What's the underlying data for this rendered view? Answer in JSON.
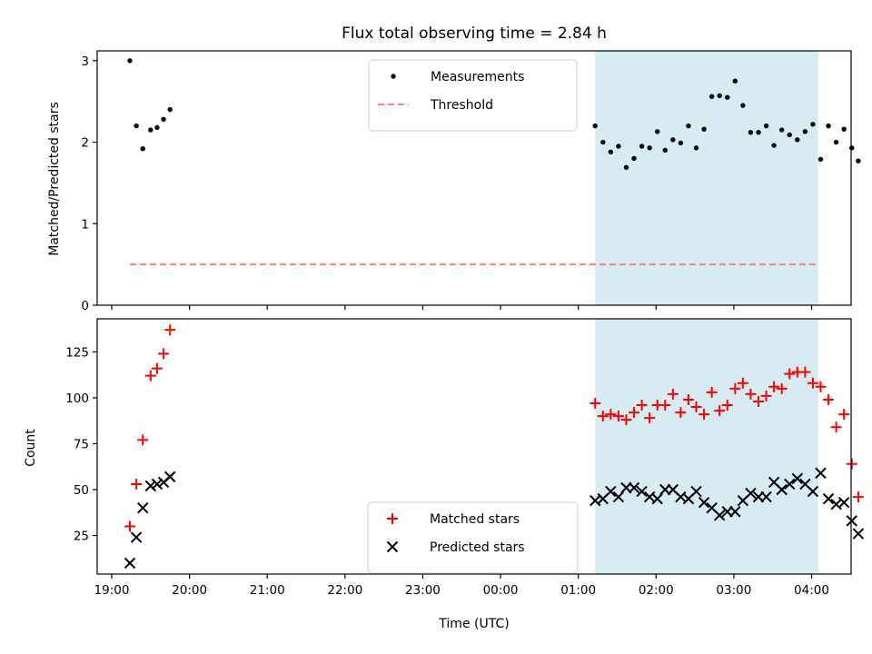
{
  "chart_data": {
    "type": "scatter",
    "title": "Flux total observing time = 2.84 h",
    "xlabel": "Time (UTC)",
    "x_ticks": [
      "19:00",
      "20:00",
      "21:00",
      "22:00",
      "23:00",
      "00:00",
      "01:00",
      "02:00",
      "03:00",
      "04:00"
    ],
    "shaded_region": [
      "01:13",
      "04:05"
    ],
    "panels": [
      {
        "ylabel": "Matched/Predicted stars",
        "ylim": [
          0,
          3.12
        ],
        "yticks": [
          0,
          1,
          2,
          3
        ],
        "legend": "top-center",
        "series": [
          {
            "name": "Measurements",
            "color": "#000000",
            "marker": "dot",
            "points": [
              [
                "19:14",
                3.0
              ],
              [
                "19:19",
                2.2
              ],
              [
                "19:24",
                1.92
              ],
              [
                "19:30",
                2.15
              ],
              [
                "19:35",
                2.18
              ],
              [
                "19:40",
                2.28
              ],
              [
                "19:45",
                2.4
              ],
              [
                "01:13",
                2.2
              ],
              [
                "01:19",
                2.0
              ],
              [
                "01:25",
                1.88
              ],
              [
                "01:31",
                1.95
              ],
              [
                "01:37",
                1.69
              ],
              [
                "01:43",
                1.8
              ],
              [
                "01:49",
                1.95
              ],
              [
                "01:55",
                1.93
              ],
              [
                "02:01",
                2.13
              ],
              [
                "02:07",
                1.9
              ],
              [
                "02:13",
                2.03
              ],
              [
                "02:19",
                1.99
              ],
              [
                "02:25",
                2.2
              ],
              [
                "02:31",
                1.93
              ],
              [
                "02:37",
                2.16
              ],
              [
                "02:43",
                2.56
              ],
              [
                "02:49",
                2.57
              ],
              [
                "02:55",
                2.55
              ],
              [
                "03:01",
                2.75
              ],
              [
                "03:07",
                2.45
              ],
              [
                "03:13",
                2.12
              ],
              [
                "03:19",
                2.12
              ],
              [
                "03:25",
                2.2
              ],
              [
                "03:31",
                1.96
              ],
              [
                "03:37",
                2.15
              ],
              [
                "03:43",
                2.09
              ],
              [
                "03:49",
                2.03
              ],
              [
                "03:55",
                2.13
              ],
              [
                "04:01",
                2.22
              ],
              [
                "04:07",
                1.79
              ],
              [
                "04:13",
                2.2
              ],
              [
                "04:19",
                2.0
              ],
              [
                "04:25",
                2.16
              ],
              [
                "04:31",
                1.93
              ],
              [
                "04:36",
                1.77
              ]
            ]
          },
          {
            "name": "Threshold",
            "color": "#ff7f7f",
            "style": "dashed",
            "points": [
              [
                "19:14",
                0.5
              ],
              [
                "04:05",
                0.5
              ]
            ]
          }
        ]
      },
      {
        "ylabel": "Count",
        "ylim": [
          4,
          143
        ],
        "yticks": [
          25,
          50,
          75,
          100,
          125
        ],
        "legend": "bottom-center",
        "series": [
          {
            "name": "Matched stars",
            "color": "#ff0000",
            "marker": "plus",
            "points": [
              [
                "19:14",
                30
              ],
              [
                "19:19",
                53
              ],
              [
                "19:24",
                77
              ],
              [
                "19:30",
                112
              ],
              [
                "19:35",
                116
              ],
              [
                "19:40",
                124
              ],
              [
                "19:45",
                137
              ],
              [
                "01:13",
                97
              ],
              [
                "01:19",
                90
              ],
              [
                "01:25",
                91
              ],
              [
                "01:31",
                90
              ],
              [
                "01:37",
                88
              ],
              [
                "01:43",
                92
              ],
              [
                "01:49",
                96
              ],
              [
                "01:55",
                89
              ],
              [
                "02:01",
                96
              ],
              [
                "02:07",
                96
              ],
              [
                "02:13",
                102
              ],
              [
                "02:19",
                92
              ],
              [
                "02:25",
                99
              ],
              [
                "02:31",
                95
              ],
              [
                "02:37",
                91
              ],
              [
                "02:43",
                103
              ],
              [
                "02:49",
                93
              ],
              [
                "02:55",
                96
              ],
              [
                "03:01",
                105
              ],
              [
                "03:07",
                108
              ],
              [
                "03:13",
                102
              ],
              [
                "03:19",
                98
              ],
              [
                "03:25",
                101
              ],
              [
                "03:31",
                106
              ],
              [
                "03:37",
                105
              ],
              [
                "03:43",
                113
              ],
              [
                "03:49",
                114
              ],
              [
                "03:55",
                114
              ],
              [
                "04:01",
                108
              ],
              [
                "04:07",
                106
              ],
              [
                "04:13",
                99
              ],
              [
                "04:19",
                84
              ],
              [
                "04:25",
                91
              ],
              [
                "04:31",
                64
              ],
              [
                "04:36",
                46
              ]
            ]
          },
          {
            "name": "Predicted stars",
            "color": "#000000",
            "marker": "x",
            "points": [
              [
                "19:14",
                10
              ],
              [
                "19:19",
                24
              ],
              [
                "19:24",
                40
              ],
              [
                "19:30",
                52
              ],
              [
                "19:35",
                53
              ],
              [
                "19:40",
                54
              ],
              [
                "19:45",
                57
              ],
              [
                "01:13",
                44
              ],
              [
                "01:19",
                45
              ],
              [
                "01:25",
                49
              ],
              [
                "01:31",
                46
              ],
              [
                "01:37",
                51
              ],
              [
                "01:43",
                51
              ],
              [
                "01:49",
                49
              ],
              [
                "01:55",
                46
              ],
              [
                "02:01",
                45
              ],
              [
                "02:07",
                50
              ],
              [
                "02:13",
                50
              ],
              [
                "02:19",
                46
              ],
              [
                "02:25",
                45
              ],
              [
                "02:31",
                49
              ],
              [
                "02:37",
                43
              ],
              [
                "02:43",
                40
              ],
              [
                "02:49",
                36
              ],
              [
                "02:55",
                38
              ],
              [
                "03:01",
                38
              ],
              [
                "03:07",
                44
              ],
              [
                "03:13",
                48
              ],
              [
                "03:19",
                46
              ],
              [
                "03:25",
                46
              ],
              [
                "03:31",
                54
              ],
              [
                "03:37",
                50
              ],
              [
                "03:43",
                53
              ],
              [
                "03:49",
                56
              ],
              [
                "03:55",
                53
              ],
              [
                "04:01",
                49
              ],
              [
                "04:07",
                59
              ],
              [
                "04:13",
                45
              ],
              [
                "04:19",
                42
              ],
              [
                "04:25",
                43
              ],
              [
                "04:31",
                33
              ],
              [
                "04:36",
                26
              ]
            ]
          }
        ]
      }
    ]
  }
}
